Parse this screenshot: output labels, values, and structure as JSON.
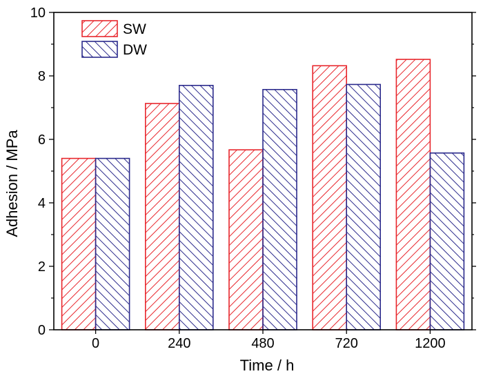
{
  "chart_data": {
    "type": "bar",
    "categories": [
      "0",
      "240",
      "480",
      "720",
      "1200"
    ],
    "series": [
      {
        "name": "SW",
        "values": [
          5.4,
          7.13,
          5.67,
          8.32,
          8.52
        ],
        "color": "#e8262c",
        "pattern": "diagonal-up"
      },
      {
        "name": "DW",
        "values": [
          5.4,
          7.7,
          7.57,
          7.73,
          5.57
        ],
        "color": "#2b2a8c",
        "pattern": "diagonal-down"
      }
    ],
    "title": "",
    "xlabel": "Time / h",
    "ylabel": "Adhesion / MPa",
    "ylim": [
      0,
      10
    ],
    "yticks": [
      "0",
      "2",
      "4",
      "6",
      "8",
      "10"
    ],
    "grid": false,
    "legend_position": "top-left"
  }
}
